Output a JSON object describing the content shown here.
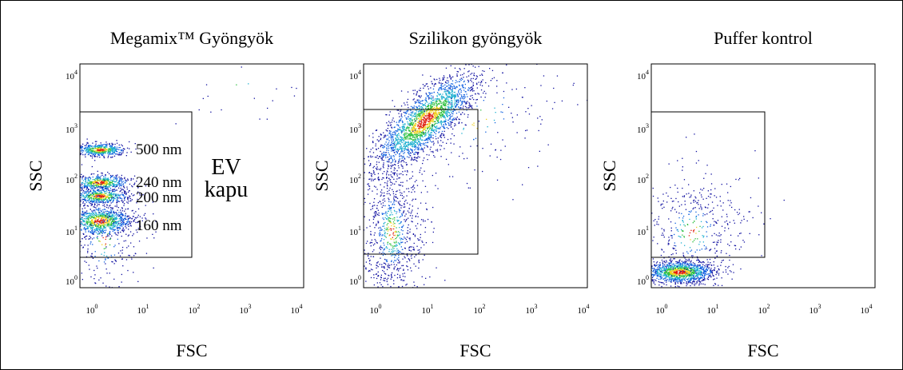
{
  "panels": [
    {
      "title": "Megamix™ Gyöngyök",
      "x_label": "FSC",
      "y_label": "SSC",
      "annotations": [
        "500 nm",
        "240 nm",
        "200 nm",
        "160 nm",
        "EV",
        "kapu"
      ]
    },
    {
      "title": "Szilikon gyöngyök",
      "x_label": "FSC",
      "y_label": "SSC"
    },
    {
      "title": "Puffer kontrol",
      "x_label": "FSC",
      "y_label": "SSC"
    }
  ],
  "ticks": [
    {
      "base": "10",
      "exp": "0"
    },
    {
      "base": "10",
      "exp": "1"
    },
    {
      "base": "10",
      "exp": "2"
    },
    {
      "base": "10",
      "exp": "3"
    },
    {
      "base": "10",
      "exp": "4"
    }
  ]
}
